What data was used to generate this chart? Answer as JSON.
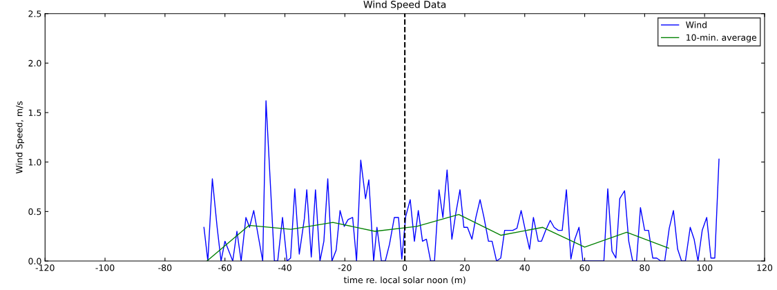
{
  "chart_data": {
    "type": "line",
    "title": "Wind Speed Data",
    "xlabel": "time re. local solar noon (m)",
    "ylabel": "Wind Speed, m/s",
    "xlim": [
      -120,
      120
    ],
    "xticks": [
      -120,
      -100,
      -80,
      -60,
      -40,
      -20,
      0,
      20,
      40,
      60,
      80,
      100,
      120
    ],
    "ylim": [
      0,
      2.5
    ],
    "yticks": [
      {
        "value": 0,
        "label": "0.0"
      },
      0.5,
      {
        "value": 1,
        "label": "1.0"
      },
      1.5,
      {
        "value": 2,
        "label": "2.0"
      },
      2.5
    ],
    "grid": false,
    "legend": "top right",
    "ref_lines": [
      {
        "axis": "x",
        "value": 0,
        "color": "#000000",
        "line_style": "dashed"
      }
    ],
    "series": [
      {
        "name": "Wind",
        "color": "#0000ff",
        "x": [
          -67,
          -65.7,
          -64.2,
          -62.6,
          -61.3,
          -60,
          -57.4,
          -56,
          -54.6,
          -53,
          -51.8,
          -50.4,
          -47.4,
          -46.3,
          -43.5,
          -42.4,
          -40.8,
          -39.3,
          -38.1,
          -36.7,
          -35.2,
          -33.5,
          -32.7,
          -31.2,
          -29.8,
          -28.3,
          -27,
          -25.7,
          -24.3,
          -22.9,
          -21.6,
          -20.2,
          -18.9,
          -17.4,
          -16.1,
          -14.7,
          -13.1,
          -12,
          -10.4,
          -9.3,
          -7.8,
          -6.5,
          -5.1,
          -3.5,
          -2.1,
          -1,
          0.3,
          1.8,
          3.2,
          4.5,
          5.9,
          7.2,
          8.6,
          9.9,
          11.4,
          12.7,
          14.1,
          15.7,
          17,
          18.4,
          19.7,
          20.9,
          22.4,
          23.7,
          25.1,
          26.4,
          27.9,
          29.1,
          30.6,
          32,
          33.3,
          34.7,
          36,
          37.4,
          38.8,
          40.2,
          41.6,
          42.9,
          44.5,
          45.6,
          47,
          48.5,
          49.8,
          51.2,
          52.5,
          53.9,
          55.4,
          56.7,
          58.1,
          59.4,
          62.1,
          65,
          66.4,
          67.7,
          69.1,
          70.4,
          71.7,
          73.3,
          74.7,
          76,
          77.3,
          78.6,
          80,
          81.3,
          82.7,
          84,
          85.4,
          86.7,
          88.2,
          89.6,
          91,
          92.3,
          93.6,
          95.2,
          96.5,
          97.8,
          99.2,
          100.7,
          102.1,
          103.4,
          104.8
        ],
        "values": [
          0.34,
          0,
          0.83,
          0.34,
          0,
          0.2,
          0,
          0.3,
          0,
          0.44,
          0.34,
          0.51,
          0,
          1.62,
          0,
          0,
          0.44,
          0,
          0.03,
          0.73,
          0.07,
          0.43,
          0.72,
          0.04,
          0.72,
          0,
          0.2,
          0.83,
          0,
          0.11,
          0.51,
          0.35,
          0.42,
          0.44,
          0,
          1.02,
          0.63,
          0.82,
          0,
          0.34,
          0,
          0,
          0.17,
          0.44,
          0.44,
          0.02,
          0.45,
          0.62,
          0.2,
          0.51,
          0.2,
          0.22,
          0,
          0,
          0.72,
          0.44,
          0.92,
          0.22,
          0.48,
          0.72,
          0.34,
          0.34,
          0.22,
          0.44,
          0.62,
          0.44,
          0.2,
          0.2,
          0,
          0.03,
          0.31,
          0.31,
          0.31,
          0.33,
          0.51,
          0.31,
          0.12,
          0.44,
          0.2,
          0.2,
          0.31,
          0.41,
          0.34,
          0.31,
          0.31,
          0.72,
          0.02,
          0.22,
          0.34,
          0,
          0,
          0,
          0,
          0.73,
          0.1,
          0.03,
          0.63,
          0.71,
          0.2,
          0,
          0,
          0.54,
          0.31,
          0.31,
          0.03,
          0.03,
          0,
          0,
          0.33,
          0.51,
          0.12,
          0,
          0,
          0.34,
          0.22,
          0,
          0.31,
          0.44,
          0.03,
          0.03,
          1.03
        ]
      },
      {
        "name": "10-min. average",
        "color": "#008000",
        "x": [
          -66,
          -52,
          -38,
          -24,
          -10,
          4,
          18,
          32,
          46,
          60,
          74,
          88
        ],
        "values": [
          0,
          0.36,
          0.32,
          0.39,
          0.3,
          0.35,
          0.47,
          0.26,
          0.34,
          0.14,
          0.29,
          0.13
        ]
      }
    ]
  }
}
